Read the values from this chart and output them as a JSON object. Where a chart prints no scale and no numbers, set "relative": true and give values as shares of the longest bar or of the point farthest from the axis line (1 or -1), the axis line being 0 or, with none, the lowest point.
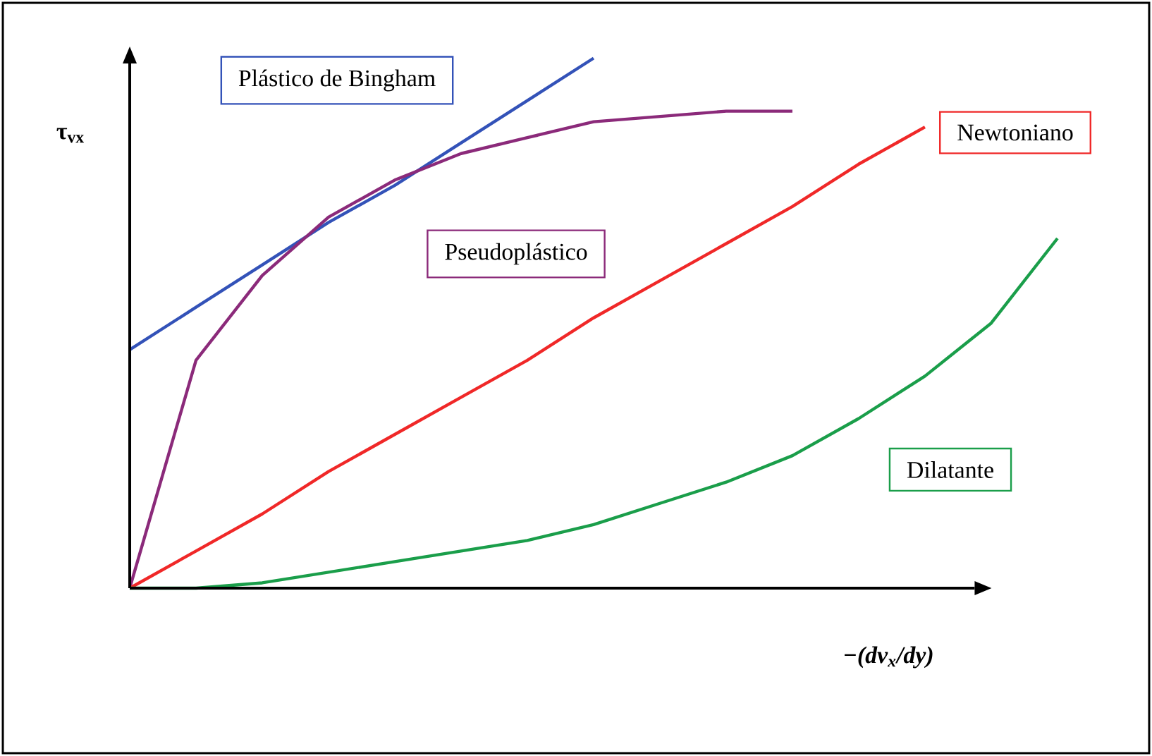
{
  "chart_data": {
    "type": "line",
    "relative": true,
    "xlabel": "−(dv$_{x}$/dy)",
    "ylabel": "**τ$_{vx}$**",
    "categories": [
      null,
      null,
      null,
      null,
      null,
      null,
      null,
      null,
      null,
      null,
      null,
      null,
      null,
      null,
      null
    ],
    "series": [
      {
        "name": "Plástico de Bingham",
        "color": "#3352b8",
        "values": [
          0.45,
          0.53,
          0.61,
          0.69,
          0.76,
          0.84,
          0.92,
          1.0,
          null,
          null,
          null,
          null,
          null,
          null,
          null
        ]
      },
      {
        "name": "Pseudoplástico",
        "color": "#8b2a7a",
        "values": [
          0,
          0.43,
          0.59,
          0.7,
          0.77,
          0.82,
          0.85,
          0.88,
          0.89,
          0.9,
          0.9,
          null,
          null,
          null,
          null
        ]
      },
      {
        "name": "Newtoniano",
        "color": "#f02828",
        "values": [
          0,
          0.07,
          0.14,
          0.22,
          0.29,
          0.36,
          0.43,
          0.51,
          0.58,
          0.65,
          0.72,
          0.8,
          0.87,
          null,
          null
        ]
      },
      {
        "name": "Dilatante",
        "color": "#1a9e4a",
        "values": [
          0,
          0,
          0.01,
          0.03,
          0.05,
          0.07,
          0.09,
          0.12,
          0.16,
          0.2,
          0.25,
          0.32,
          0.4,
          0.5,
          0.66
        ]
      }
    ]
  }
}
